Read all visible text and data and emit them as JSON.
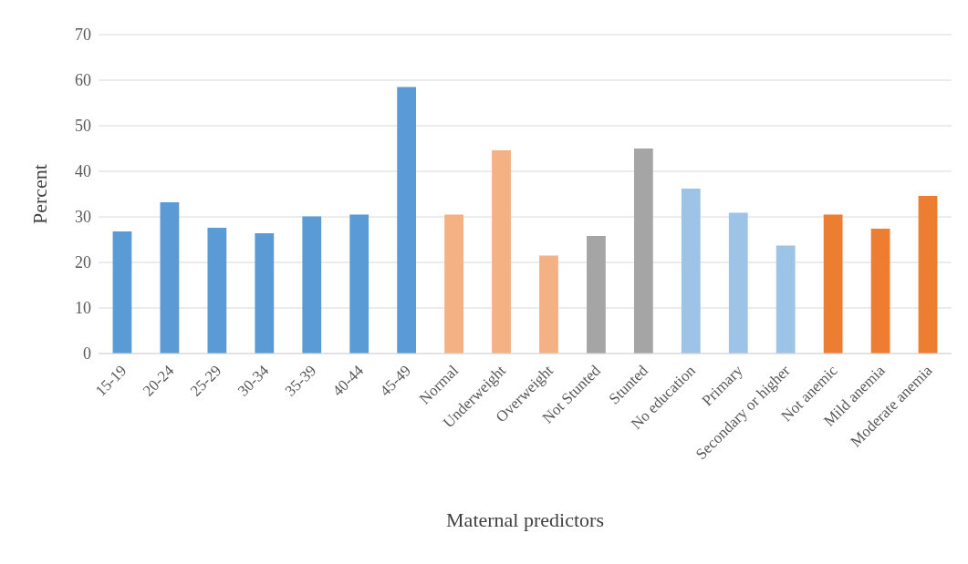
{
  "chart_data": {
    "type": "bar",
    "xlabel": "Maternal predictors",
    "ylabel": "Percent",
    "categories": [
      "15-19",
      "20-24",
      "25-29",
      "30-34",
      "35-39",
      "40-44",
      "45-49",
      "Normal",
      "Underweight",
      "Overweight",
      "Not Stunted",
      "Stunted",
      "No education",
      "Primary",
      "Secondary or higher",
      "Not anemic",
      "Mild anemia",
      "Moderate anemia"
    ],
    "values": [
      26.8,
      33.2,
      27.6,
      26.4,
      30.1,
      30.5,
      58.5,
      30.5,
      44.6,
      21.5,
      25.8,
      45,
      36.2,
      30.9,
      23.7,
      30.5,
      27.4,
      34.6
    ],
    "colors": [
      "#5b9bd5",
      "#5b9bd5",
      "#5b9bd5",
      "#5b9bd5",
      "#5b9bd5",
      "#5b9bd5",
      "#5b9bd5",
      "#f4b183",
      "#f4b183",
      "#f4b183",
      "#a5a5a5",
      "#a5a5a5",
      "#9dc3e6",
      "#9dc3e6",
      "#9dc3e6",
      "#ed7d31",
      "#ed7d31",
      "#ed7d31"
    ],
    "ylim": [
      0,
      70
    ],
    "yticks": [
      0,
      10,
      20,
      30,
      40,
      50,
      60,
      70
    ],
    "grid": "y",
    "legend": false
  }
}
